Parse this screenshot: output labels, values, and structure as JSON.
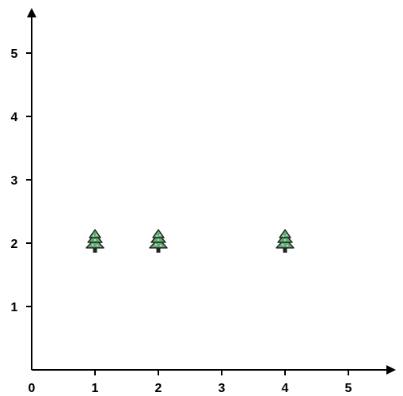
{
  "chart_data": {
    "type": "scatter",
    "title": "",
    "xlabel": "",
    "ylabel": "",
    "xlim": [
      0,
      5.7
    ],
    "ylim": [
      0,
      5.7
    ],
    "x_ticks": [
      "0",
      "1",
      "2",
      "3",
      "4",
      "5"
    ],
    "y_ticks": [
      "1",
      "2",
      "3",
      "4",
      "5"
    ],
    "grid": false,
    "legend": "none",
    "marker_icon": "pine-tree-icon",
    "colors": {
      "axis": "#000000",
      "tree_fill": "#5fae73",
      "tree_outline": "#222222",
      "tree_dots": "#d9ecd8",
      "trunk": "#222222"
    },
    "points": [
      {
        "x": 1,
        "y": 2
      },
      {
        "x": 2,
        "y": 2
      },
      {
        "x": 4,
        "y": 2
      }
    ]
  }
}
